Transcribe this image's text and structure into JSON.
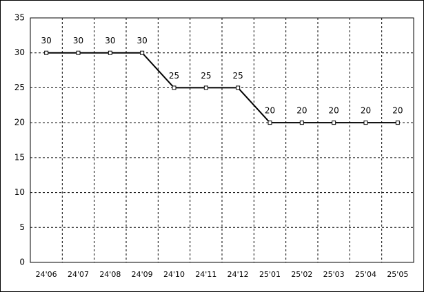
{
  "chart_data": {
    "type": "line",
    "categories": [
      "24'06",
      "24'07",
      "24'08",
      "24'09",
      "24'10",
      "24'11",
      "24'12",
      "25'01",
      "25'02",
      "25'03",
      "25'04",
      "25'05"
    ],
    "series": [
      {
        "color": "#000000",
        "values": [
          30,
          30,
          30,
          30,
          25,
          25,
          25,
          20,
          20,
          20,
          20,
          20
        ]
      }
    ],
    "ylim": [
      0,
      35
    ],
    "yticks": [
      0,
      5,
      10,
      15,
      20,
      25,
      30,
      35
    ],
    "grid": true
  }
}
